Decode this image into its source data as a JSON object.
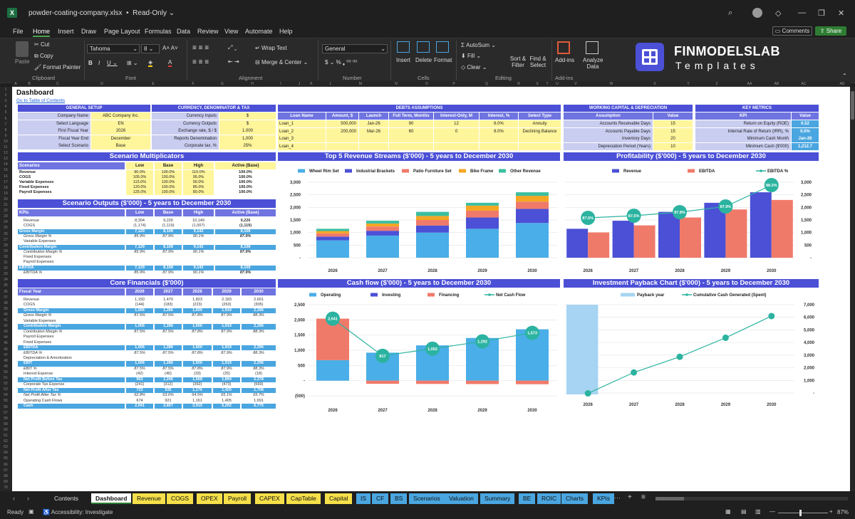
{
  "app": {
    "file_title": "powder-coating-company.xlsx",
    "mode": "Read-Only"
  },
  "menu": [
    "File",
    "Home",
    "Insert",
    "Draw",
    "Page Layout",
    "Formulas",
    "Data",
    "Review",
    "View",
    "Automate",
    "Help"
  ],
  "menu_right": {
    "comments": "Comments",
    "share": "Share"
  },
  "ribbon": {
    "paste": "Paste",
    "cut": "Cut",
    "copy": "Copy",
    "format_painter": "Format Painter",
    "clipboard": "Clipboard",
    "font_name": "Tahoma",
    "font_size": "8",
    "font": "Font",
    "wrap": "Wrap Text",
    "merge": "Merge & Center",
    "alignment": "Alignment",
    "number_format": "General",
    "number": "Number",
    "insert": "Insert",
    "delete": "Delete",
    "format": "Format",
    "cells": "Cells",
    "autosum": "AutoSum",
    "fill": "Fill",
    "clear": "Clear",
    "sort": "Sort & Filter",
    "find": "Find & Select",
    "editing": "Editing",
    "addins": "Add-ins",
    "addins_group": "Add-ins",
    "analyze": "Analyze Data",
    "brand": "FINMODELSLAB",
    "brand_sub": "Templates"
  },
  "columns": [
    "A",
    "B",
    "C",
    "D",
    "E",
    "F",
    "G",
    "H",
    "I",
    "J",
    "K",
    "L",
    "M",
    "N",
    "O",
    "P",
    "Q",
    "R",
    "S",
    "T",
    "U",
    "V",
    "W",
    "X",
    "Y",
    "Z",
    "AA",
    "AB",
    "AC",
    "AD"
  ],
  "sheet": {
    "title": "Dashboard",
    "toc": "Go to Table of Contents"
  },
  "general_setup": {
    "header": "GENERAL SETUP",
    "rows": [
      [
        "Company Name",
        "ABC Company Inc."
      ],
      [
        "Select Language",
        "EN"
      ],
      [
        "First Fiscal Year",
        "2026"
      ],
      [
        "Fiscal Year End",
        "December"
      ],
      [
        "Select Scenario",
        "Base"
      ]
    ]
  },
  "currency": {
    "header": "CURRENCY, DENOMINATOR & TAX",
    "rows": [
      [
        "Currency Inputs",
        "$"
      ],
      [
        "Currency Outputs",
        "$"
      ],
      [
        "Exchange rate, $ / $",
        "1.000"
      ],
      [
        "Reports Denomination",
        "1,000"
      ],
      [
        "Corporate tax, %",
        "25%"
      ]
    ]
  },
  "debts": {
    "header": "DEBTS ASSUMPTIONS",
    "cols": [
      "Loan Name",
      "Amount, $",
      "Launch",
      "Full Term, Months",
      "Interest-Only, M",
      "Interest, %",
      "Select Type"
    ],
    "rows": [
      [
        "Loan_1",
        "500,000",
        "Jan-26",
        "90",
        "12",
        "6.0%",
        "Annuity"
      ],
      [
        "Loan_2",
        "200,000",
        "Mar-26",
        "60",
        "0",
        "8.0%",
        "Declining Balance"
      ],
      [
        "Loan_3",
        "",
        "",
        "",
        "",
        "",
        ""
      ],
      [
        "Loan_4",
        "",
        "",
        "",
        "",
        "",
        ""
      ]
    ]
  },
  "working_capital": {
    "header": "WORKING CAPITAL & DEPRECIATION",
    "cols": [
      "Assumption",
      "Value"
    ],
    "rows": [
      [
        "Accounts Receivable Days",
        "15"
      ],
      [
        "Accounts Payable Days",
        "15"
      ],
      [
        "Inventory Days",
        "20"
      ],
      [
        "Depreciation Period (Years)",
        "10"
      ]
    ]
  },
  "key_metrics": {
    "header": "KEY METRICS",
    "cols": [
      "KPI",
      "Value"
    ],
    "rows": [
      [
        "Return on Equity (ROE)",
        "0.52"
      ],
      [
        "Internal Rate of Return (IRR), %",
        "0.0%"
      ],
      [
        "Minimum Cash Month",
        "Jan-26"
      ],
      [
        "Minimum Cash ($'000)",
        "1,212.7"
      ]
    ]
  },
  "scenario_mult": {
    "header": "Scenario Multiplicators",
    "cols": [
      "Scenarios",
      "Low",
      "Base",
      "High",
      "Active (Base)"
    ],
    "rows": [
      [
        "Revenue",
        "90.0%",
        "100.0%",
        "110.0%",
        "100.0%"
      ],
      [
        "COGS",
        "105.0%",
        "100.0%",
        "95.0%",
        "100.0%"
      ],
      [
        "Variable Expenses",
        "115.0%",
        "100.0%",
        "90.0%",
        "100.0%"
      ],
      [
        "Fixed Expenses",
        "120.0%",
        "100.0%",
        "85.0%",
        "100.0%"
      ],
      [
        "Payroll Expenses",
        "125.0%",
        "100.0%",
        "80.0%",
        "100.0%"
      ]
    ]
  },
  "scenario_out": {
    "header": "Scenario Outputs ($'000) - 5 years to December 2030",
    "cols": [
      "KPIs",
      "Low",
      "Base",
      "High",
      "Active (Base)"
    ],
    "rows": [
      [
        "Revenue",
        "8,304",
        "9,226",
        "10,149",
        "9,226",
        "n"
      ],
      [
        "COGS",
        "(1,174)",
        "(1,119)",
        "(1,007)",
        "(1,119)",
        "n"
      ],
      [
        "Gross Margin",
        "7,129",
        "8,108",
        "9,142",
        "8,108",
        "b"
      ],
      [
        "Gross Margin %",
        "85.9%",
        "87.9%",
        "90.1%",
        "87.9%",
        "i"
      ],
      [
        "Variable Expenses",
        "",
        "",
        "",
        "",
        "n"
      ],
      [
        "Contribution Margin",
        "7,129",
        "8,108",
        "9,142",
        "8,108",
        "b"
      ],
      [
        "Contribution Margin %",
        "85.9%",
        "87.9%",
        "90.1%",
        "87.9%",
        "i"
      ],
      [
        "Fixed Expenses",
        "",
        "",
        "",
        "",
        "n"
      ],
      [
        "Payroll Expenses",
        "",
        "",
        "",
        "",
        "n"
      ],
      [
        "EBITDA",
        "7,129",
        "8,108",
        "9,142",
        "8,108",
        "b"
      ],
      [
        "EBITDA %",
        "85.9%",
        "87.9%",
        "90.1%",
        "87.9%",
        "i"
      ]
    ]
  },
  "core_fin": {
    "header": "Core Financials ($'000)",
    "cols": [
      "Fiscal Year",
      "2026",
      "2027",
      "2028",
      "2029",
      "2030"
    ],
    "rows": [
      [
        "Revenue",
        "1,150",
        "1,470",
        "1,823",
        "2,183",
        "2,601",
        "n"
      ],
      [
        "COGS",
        "(144)",
        "(183)",
        "(223)",
        "(263)",
        "(305)",
        "n"
      ],
      [
        "Gross Margin",
        "1,006",
        "1,286",
        "1,600",
        "1,919",
        "2,296",
        "b"
      ],
      [
        "Gross Margin %",
        "87.5%",
        "87.5%",
        "87.8%",
        "87.9%",
        "88.3%",
        "i"
      ],
      [
        "Variable Expenses",
        "",
        "",
        "",
        "",
        "",
        "n"
      ],
      [
        "Contribution Margin",
        "1,006",
        "1,286",
        "1,600",
        "1,919",
        "2,296",
        "b"
      ],
      [
        "Contribution Margin %",
        "87.5%",
        "87.5%",
        "87.8%",
        "87.9%",
        "88.3%",
        "i"
      ],
      [
        "Payroll Expenses",
        "",
        "",
        "",
        "",
        "",
        "n"
      ],
      [
        "Fixed Expenses",
        "",
        "",
        "",
        "",
        "",
        "n"
      ],
      [
        "EBITDA",
        "1,006",
        "1,286",
        "1,600",
        "1,919",
        "2,296",
        "b"
      ],
      [
        "EBITDA %",
        "87.5%",
        "87.5%",
        "87.8%",
        "87.9%",
        "88.3%",
        "i"
      ],
      [
        "Depreciation & Amortization",
        "",
        "",
        "",
        "",
        "",
        "n"
      ],
      [
        "EBIT",
        "1,006",
        "1,286",
        "1,600",
        "1,919",
        "2,296",
        "b"
      ],
      [
        "EBIT %",
        "87.5%",
        "87.5%",
        "87.8%",
        "87.9%",
        "88.3%",
        "i"
      ],
      [
        "Interest Expense",
        "(42)",
        "(40)",
        "(33)",
        "(25)",
        "(18)",
        "n"
      ],
      [
        "Net Profit Before Tax",
        "963",
        "1,246",
        "1,568",
        "1,894",
        "2,278",
        "b"
      ],
      [
        "Corporate Tax Expense",
        "(241)",
        "(312)",
        "(392)",
        "(473)",
        "(569)",
        "n"
      ],
      [
        "Net Profit After Tax",
        "723",
        "935",
        "1,176",
        "1,420",
        "1,708",
        "b"
      ],
      [
        "Net Profit After Tax %",
        "62.8%",
        "63.6%",
        "64.5%",
        "65.1%",
        "65.7%",
        "i"
      ],
      [
        "Operating Cash Flows",
        "674",
        "921",
        "1,161",
        "1,405",
        "1,691",
        "n"
      ],
      [
        "Cash",
        "2,041",
        "2,857",
        "3,910",
        "5,202",
        "6,775",
        "b"
      ]
    ]
  },
  "chart_data": [
    {
      "type": "bar",
      "title": "Top 5 Revenue Streams ($'000) - 5 years to December 2030",
      "categories": [
        "2026",
        "2027",
        "2028",
        "2029",
        "2030"
      ],
      "series": [
        {
          "name": "Wheel Rim Set",
          "values": [
            690,
            880,
            1000,
            1150,
            1380
          ],
          "color": "#4aaee8"
        },
        {
          "name": "Industrial Brackets",
          "values": [
            150,
            190,
            280,
            450,
            560
          ],
          "color": "#4b50d6"
        },
        {
          "name": "Patio Furniture Set",
          "values": [
            130,
            170,
            220,
            270,
            290
          ],
          "color": "#f07a6a"
        },
        {
          "name": "Bike Frame",
          "values": [
            90,
            120,
            160,
            200,
            230
          ],
          "color": "#f5a623"
        },
        {
          "name": "Other Revenue",
          "values": [
            90,
            110,
            163,
            113,
            141
          ],
          "color": "#3bbfa0"
        }
      ],
      "ylim": [
        0,
        3000
      ],
      "yticks": [
        "-",
        "500",
        "1,000",
        "1,500",
        "2,000",
        "2,500",
        "3,000"
      ]
    },
    {
      "type": "bar",
      "title": "Profitability ($'000) - 5 years to December 2030",
      "categories": [
        "2026",
        "2027",
        "2028",
        "2029",
        "2030"
      ],
      "series": [
        {
          "name": "Revenue",
          "values": [
            1150,
            1470,
            1823,
            2183,
            2601
          ],
          "color": "#4b50d6"
        },
        {
          "name": "EBITDA",
          "values": [
            1006,
            1286,
            1600,
            1919,
            2296
          ],
          "color": "#f07a6a"
        },
        {
          "name": "EBITDA %",
          "values": [
            87.5,
            87.5,
            87.8,
            87.9,
            88.3
          ],
          "color": "#2bb3a0",
          "labels": [
            "87.5%",
            "87.5%",
            "87.8%",
            "87.9%",
            "88.3%"
          ]
        }
      ],
      "ylim": [
        0,
        3000
      ],
      "yticks": [
        "-",
        "500",
        "1,000",
        "1,500",
        "2,000",
        "2,500",
        "3,000"
      ]
    },
    {
      "type": "bar",
      "title": "Cash flow ($'000) - 5 years to December 2030",
      "categories": [
        "2026",
        "2027",
        "2028",
        "2029",
        "2030"
      ],
      "series": [
        {
          "name": "Operating",
          "values": [
            674,
            921,
            1161,
            1405,
            1691
          ],
          "color": "#4aaee8"
        },
        {
          "name": "Investing",
          "values": [
            0,
            0,
            0,
            0,
            0
          ],
          "color": "#4b50d6"
        },
        {
          "name": "Financing",
          "values": [
            1367,
            -104,
            -108,
            -113,
            -118
          ],
          "color": "#f07a6a"
        },
        {
          "name": "Net Cash Flow",
          "values": [
            2041,
            817,
            1052,
            1292,
            1573
          ],
          "color": "#2bb3a0",
          "labels": [
            "2,041",
            "817",
            "1,052",
            "1,292",
            "1,573"
          ]
        }
      ],
      "ylim": [
        -500,
        2500
      ],
      "yticks": [
        "(500)",
        "-",
        "500",
        "1,000",
        "1,500",
        "2,000",
        "2,500"
      ]
    },
    {
      "type": "line",
      "title": "Investment Payback Chart ($'000) - 5 years to December 2030",
      "categories": [
        "2026",
        "2027",
        "2028",
        "2029",
        "2030"
      ],
      "series": [
        {
          "name": "Payback year",
          "values": [
            1,
            0,
            0,
            0,
            0
          ],
          "color": "#a6d4f2"
        },
        {
          "name": "Cumulative Cash Generated (Spent)",
          "values": [
            -30,
            1630,
            2870,
            4380,
            6100
          ],
          "color": "#2bb3a0"
        }
      ],
      "ylim": [
        -500,
        7000
      ],
      "yticks": [
        "-",
        "1,000",
        "2,000",
        "3,000",
        "4,000",
        "5,000",
        "6,000",
        "7,000"
      ]
    }
  ],
  "tabs": [
    {
      "label": "Contents",
      "color": "#1f1f1f",
      "fg": "#ddd"
    },
    {
      "label": "Dashboard",
      "color": "#ffffff",
      "fg": "#111",
      "active": true
    },
    {
      "label": "Revenue",
      "color": "#f5e04a"
    },
    {
      "label": "COGS",
      "color": "#f5e04a"
    },
    {
      "label": "OPEX",
      "color": "#f5e04a"
    },
    {
      "label": "Payroll",
      "color": "#f5e04a"
    },
    {
      "label": "CAPEX",
      "color": "#f5e04a"
    },
    {
      "label": "CapTable",
      "color": "#f5e04a"
    },
    {
      "label": "Capital",
      "color": "#f5e04a"
    },
    {
      "label": "IS",
      "color": "#4aa6e0"
    },
    {
      "label": "CF",
      "color": "#4aa6e0"
    },
    {
      "label": "BS",
      "color": "#4aa6e0"
    },
    {
      "label": "Scenarios",
      "color": "#4aa6e0"
    },
    {
      "label": "Valuation",
      "color": "#4aa6e0"
    },
    {
      "label": "Summary",
      "color": "#4aa6e0"
    },
    {
      "label": "BE",
      "color": "#4aa6e0"
    },
    {
      "label": "ROIC",
      "color": "#4aa6e0"
    },
    {
      "label": "Charts",
      "color": "#4aa6e0"
    },
    {
      "label": "KPIs",
      "color": "#4aa6e0"
    }
  ],
  "status": {
    "ready": "Ready",
    "accessibility": "Accessibility: Investigate",
    "zoom": "87%"
  }
}
